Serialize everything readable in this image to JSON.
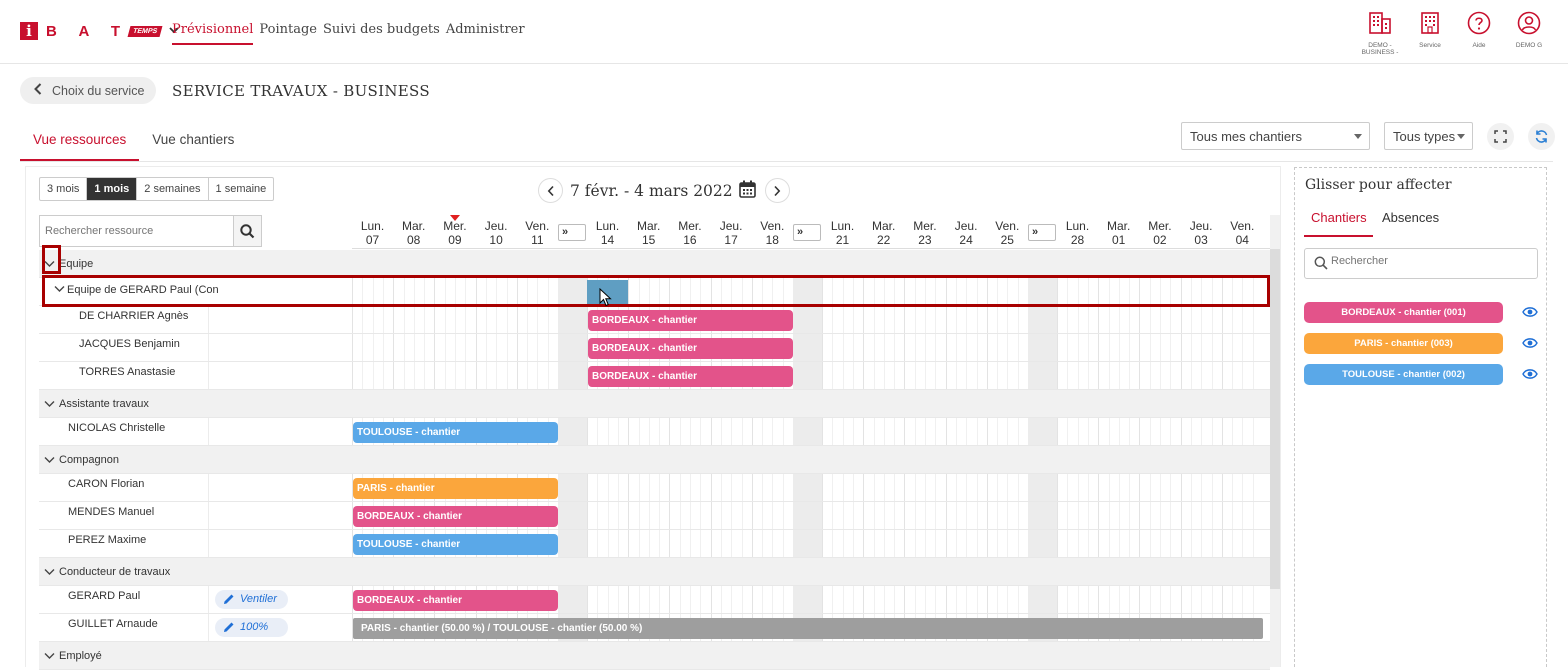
{
  "header": {
    "logo_letters": "B A T",
    "logo_i": "i",
    "logo_temps": "TEMPS",
    "nav": [
      "Prévisionnel",
      "Pointage",
      "Suivi des budgets",
      "Administrer"
    ],
    "tools": [
      {
        "icon": "building-icon",
        "label": "DEMO - BUSINESS -"
      },
      {
        "icon": "building-icon",
        "label": "Service"
      },
      {
        "icon": "help-icon",
        "label": "Aide"
      },
      {
        "icon": "user-icon",
        "label": "DEMO G"
      }
    ]
  },
  "service": {
    "back_label": "Choix du service",
    "title": "SERVICE TRAVAUX - BUSINESS"
  },
  "tabs": [
    "Vue ressources",
    "Vue chantiers"
  ],
  "filters": {
    "chantiers": "Tous mes chantiers",
    "types": "Tous types"
  },
  "period_buttons": [
    "3 mois",
    "1 mois",
    "2 semaines",
    "1 semaine"
  ],
  "period_active": "1 mois",
  "date_range": "7 févr. - 4 mars 2022",
  "search_placeholder": "Rechercher ressource",
  "days": [
    {
      "d": "Lun.",
      "n": "07"
    },
    {
      "d": "Mar.",
      "n": "08"
    },
    {
      "d": "Mer.",
      "n": "09"
    },
    {
      "d": "Jeu.",
      "n": "10"
    },
    {
      "d": "Ven.",
      "n": "11"
    },
    {
      "d": "Lun.",
      "n": "14"
    },
    {
      "d": "Mar.",
      "n": "15"
    },
    {
      "d": "Mer.",
      "n": "16"
    },
    {
      "d": "Jeu.",
      "n": "17"
    },
    {
      "d": "Ven.",
      "n": "18"
    },
    {
      "d": "Lun.",
      "n": "21"
    },
    {
      "d": "Mar.",
      "n": "22"
    },
    {
      "d": "Mer.",
      "n": "23"
    },
    {
      "d": "Jeu.",
      "n": "24"
    },
    {
      "d": "Ven.",
      "n": "25"
    },
    {
      "d": "Lun.",
      "n": "28"
    },
    {
      "d": "Mar.",
      "n": "01"
    },
    {
      "d": "Mer.",
      "n": "02"
    },
    {
      "d": "Jeu.",
      "n": "03"
    },
    {
      "d": "Ven.",
      "n": "04"
    }
  ],
  "today_index": 2,
  "gap_label": "»",
  "rows": [
    {
      "type": "group",
      "label": "Equipe"
    },
    {
      "type": "team",
      "label": "Equipe de GERARD Paul (Con"
    },
    {
      "type": "person",
      "label": "DE CHARRIER Agnès",
      "bars": [
        {
          "text": "BORDEAUX - chantier",
          "color": "#e3538a",
          "start": 5,
          "end": 10
        }
      ]
    },
    {
      "type": "person",
      "label": "JACQUES Benjamin",
      "bars": [
        {
          "text": "BORDEAUX - chantier",
          "color": "#e3538a",
          "start": 5,
          "end": 10
        }
      ]
    },
    {
      "type": "person",
      "label": "TORRES Anastasie",
      "bars": [
        {
          "text": "BORDEAUX - chantier",
          "color": "#e3538a",
          "start": 5,
          "end": 10
        }
      ]
    },
    {
      "type": "group",
      "label": "Assistante travaux"
    },
    {
      "type": "person1",
      "label": "NICOLAS Christelle",
      "bars": [
        {
          "text": "TOULOUSE - chantier",
          "color": "#5aa8e8",
          "start": 0,
          "end": 5
        }
      ]
    },
    {
      "type": "group",
      "label": "Compagnon"
    },
    {
      "type": "person1",
      "label": "CARON Florian",
      "bars": [
        {
          "text": "PARIS - chantier",
          "color": "#fba63c",
          "start": 0,
          "end": 5
        }
      ]
    },
    {
      "type": "person1",
      "label": "MENDES Manuel",
      "bars": [
        {
          "text": "BORDEAUX - chantier",
          "color": "#e3538a",
          "start": 0,
          "end": 5
        }
      ]
    },
    {
      "type": "person1",
      "label": "PEREZ Maxime",
      "bars": [
        {
          "text": "TOULOUSE - chantier",
          "color": "#5aa8e8",
          "start": 0,
          "end": 5
        }
      ]
    },
    {
      "type": "group",
      "label": "Conducteur de travaux"
    },
    {
      "type": "person1",
      "label": "GERARD Paul",
      "pill": "Ventiler",
      "bars": [
        {
          "text": "BORDEAUX - chantier",
          "color": "#e3538a",
          "start": 0,
          "end": 5
        }
      ]
    },
    {
      "type": "person1",
      "label": "GUILLET Arnaude",
      "pill": "100%",
      "bars": [
        {
          "text": "PARIS - chantier (50.00 %) / TOULOUSE - chantier (50.00 %)",
          "color": "#9e9e9e",
          "start": 0,
          "end": 20
        }
      ]
    },
    {
      "type": "group",
      "label": "Employé"
    }
  ],
  "right_panel": {
    "title": "Glisser pour affecter",
    "tabs": [
      "Chantiers",
      "Absences"
    ],
    "search_placeholder": "Rechercher",
    "chantiers": [
      {
        "label": "BORDEAUX - chantier (001)",
        "color": "#e3538a"
      },
      {
        "label": "PARIS - chantier (003)",
        "color": "#fba63c"
      },
      {
        "label": "TOULOUSE - chantier (002)",
        "color": "#5aa8e8"
      }
    ]
  },
  "colors": {
    "brand": "#c8102e",
    "highlight": "#a80000"
  }
}
